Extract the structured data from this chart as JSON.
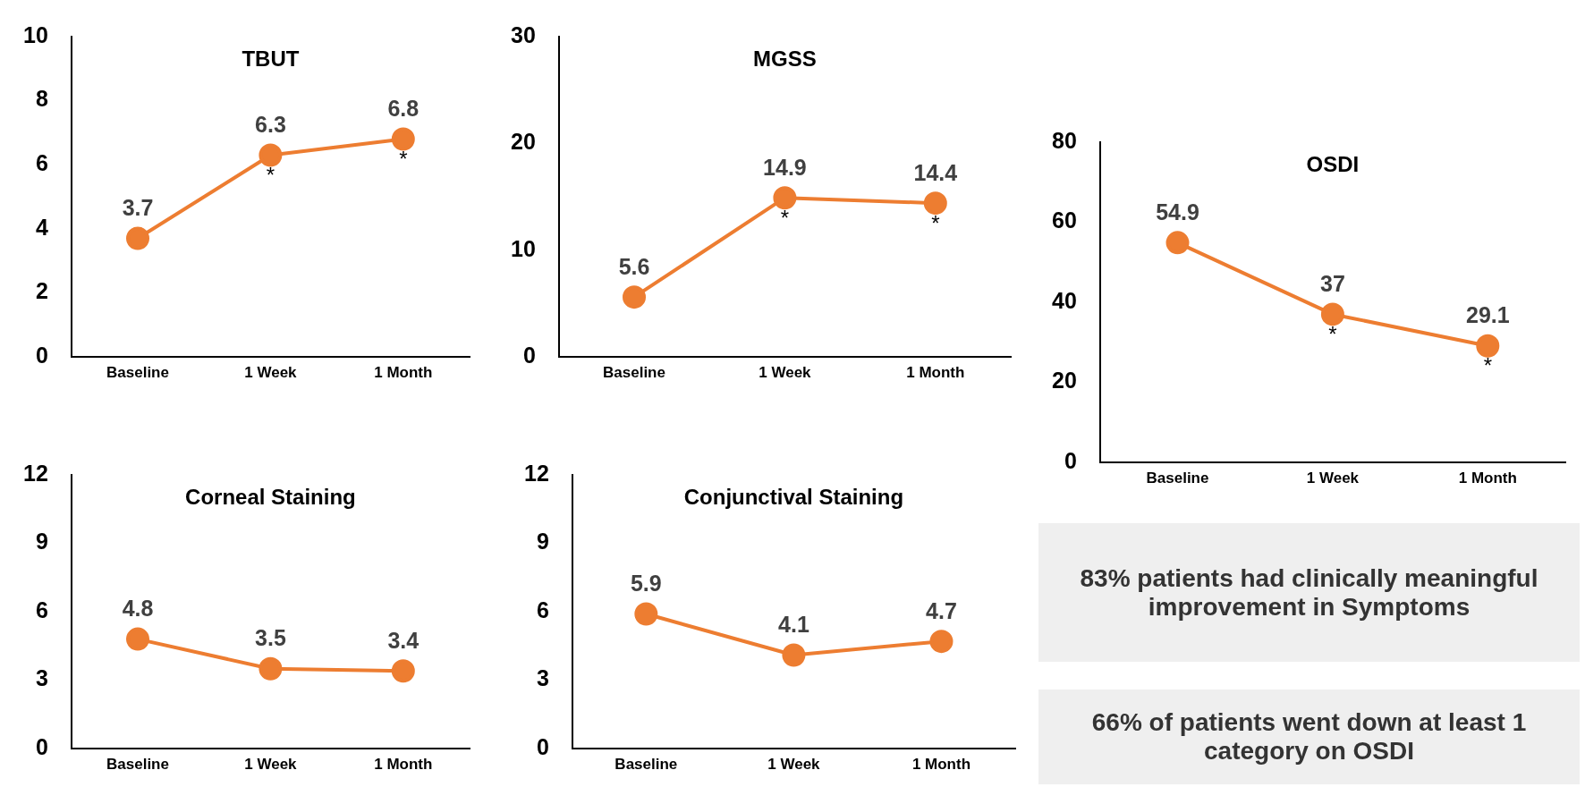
{
  "chart_data": [
    {
      "type": "line",
      "title": "TBUT",
      "categories": [
        "Baseline",
        "1 Week",
        "1 Month"
      ],
      "series": [
        {
          "color": "#ed7d31",
          "values": [
            3.7,
            6.3,
            6.8
          ]
        }
      ],
      "ylim": [
        0,
        10
      ],
      "yticks": [
        0,
        2,
        4,
        6,
        8,
        10
      ],
      "data_labels": true,
      "marker": "circle",
      "line_style": "solid",
      "legend": false,
      "annotations": [
        {
          "text": "*",
          "x": "1 Week",
          "y": 6.3
        },
        {
          "text": "*",
          "x": "1 Month",
          "y": 6.8
        }
      ]
    },
    {
      "type": "line",
      "title": "MGSS",
      "categories": [
        "Baseline",
        "1 Week",
        "1 Month"
      ],
      "series": [
        {
          "color": "#ed7d31",
          "values": [
            5.6,
            14.9,
            14.4
          ]
        }
      ],
      "ylim": [
        0,
        30
      ],
      "yticks": [
        0,
        10,
        20,
        30
      ],
      "data_labels": true,
      "marker": "circle",
      "line_style": "solid",
      "legend": false,
      "annotations": [
        {
          "text": "*",
          "x": "1 Week",
          "y": 14.9
        },
        {
          "text": "*",
          "x": "1 Month",
          "y": 14.4
        }
      ]
    },
    {
      "type": "line",
      "title": "OSDI",
      "categories": [
        "Baseline",
        "1 Week",
        "1 Month"
      ],
      "series": [
        {
          "color": "#ed7d31",
          "values": [
            54.9,
            37,
            29.1
          ]
        }
      ],
      "ylim": [
        0,
        80
      ],
      "yticks": [
        0,
        20,
        40,
        60,
        80
      ],
      "data_labels": true,
      "marker": "circle",
      "line_style": "solid",
      "legend": false,
      "annotations": [
        {
          "text": "*",
          "x": "1 Week",
          "y": 37
        },
        {
          "text": "*",
          "x": "1 Month",
          "y": 29.1
        }
      ]
    },
    {
      "type": "line",
      "title": "Corneal Staining",
      "categories": [
        "Baseline",
        "1 Week",
        "1 Month"
      ],
      "series": [
        {
          "color": "#ed7d31",
          "values": [
            4.8,
            3.5,
            3.4
          ]
        }
      ],
      "ylim": [
        0,
        12
      ],
      "yticks": [
        0,
        3,
        6,
        9,
        12
      ],
      "data_labels": true,
      "marker": "circle",
      "line_style": "solid",
      "legend": false
    },
    {
      "type": "line",
      "title": "Conjunctival Staining",
      "categories": [
        "Baseline",
        "1 Week",
        "1 Month"
      ],
      "series": [
        {
          "color": "#ed7d31",
          "values": [
            5.9,
            4.1,
            4.7
          ]
        }
      ],
      "ylim": [
        0,
        12
      ],
      "yticks": [
        0,
        3,
        6,
        9,
        12
      ],
      "data_labels": true,
      "marker": "circle",
      "line_style": "solid",
      "legend": false
    },
    {
      "type": "other",
      "annotations": [
        "83% patients had clinically meaningful improvement in Symptoms"
      ]
    },
    {
      "type": "other",
      "annotations": [
        "66% of patients went down at least 1 category on OSDI"
      ]
    }
  ]
}
